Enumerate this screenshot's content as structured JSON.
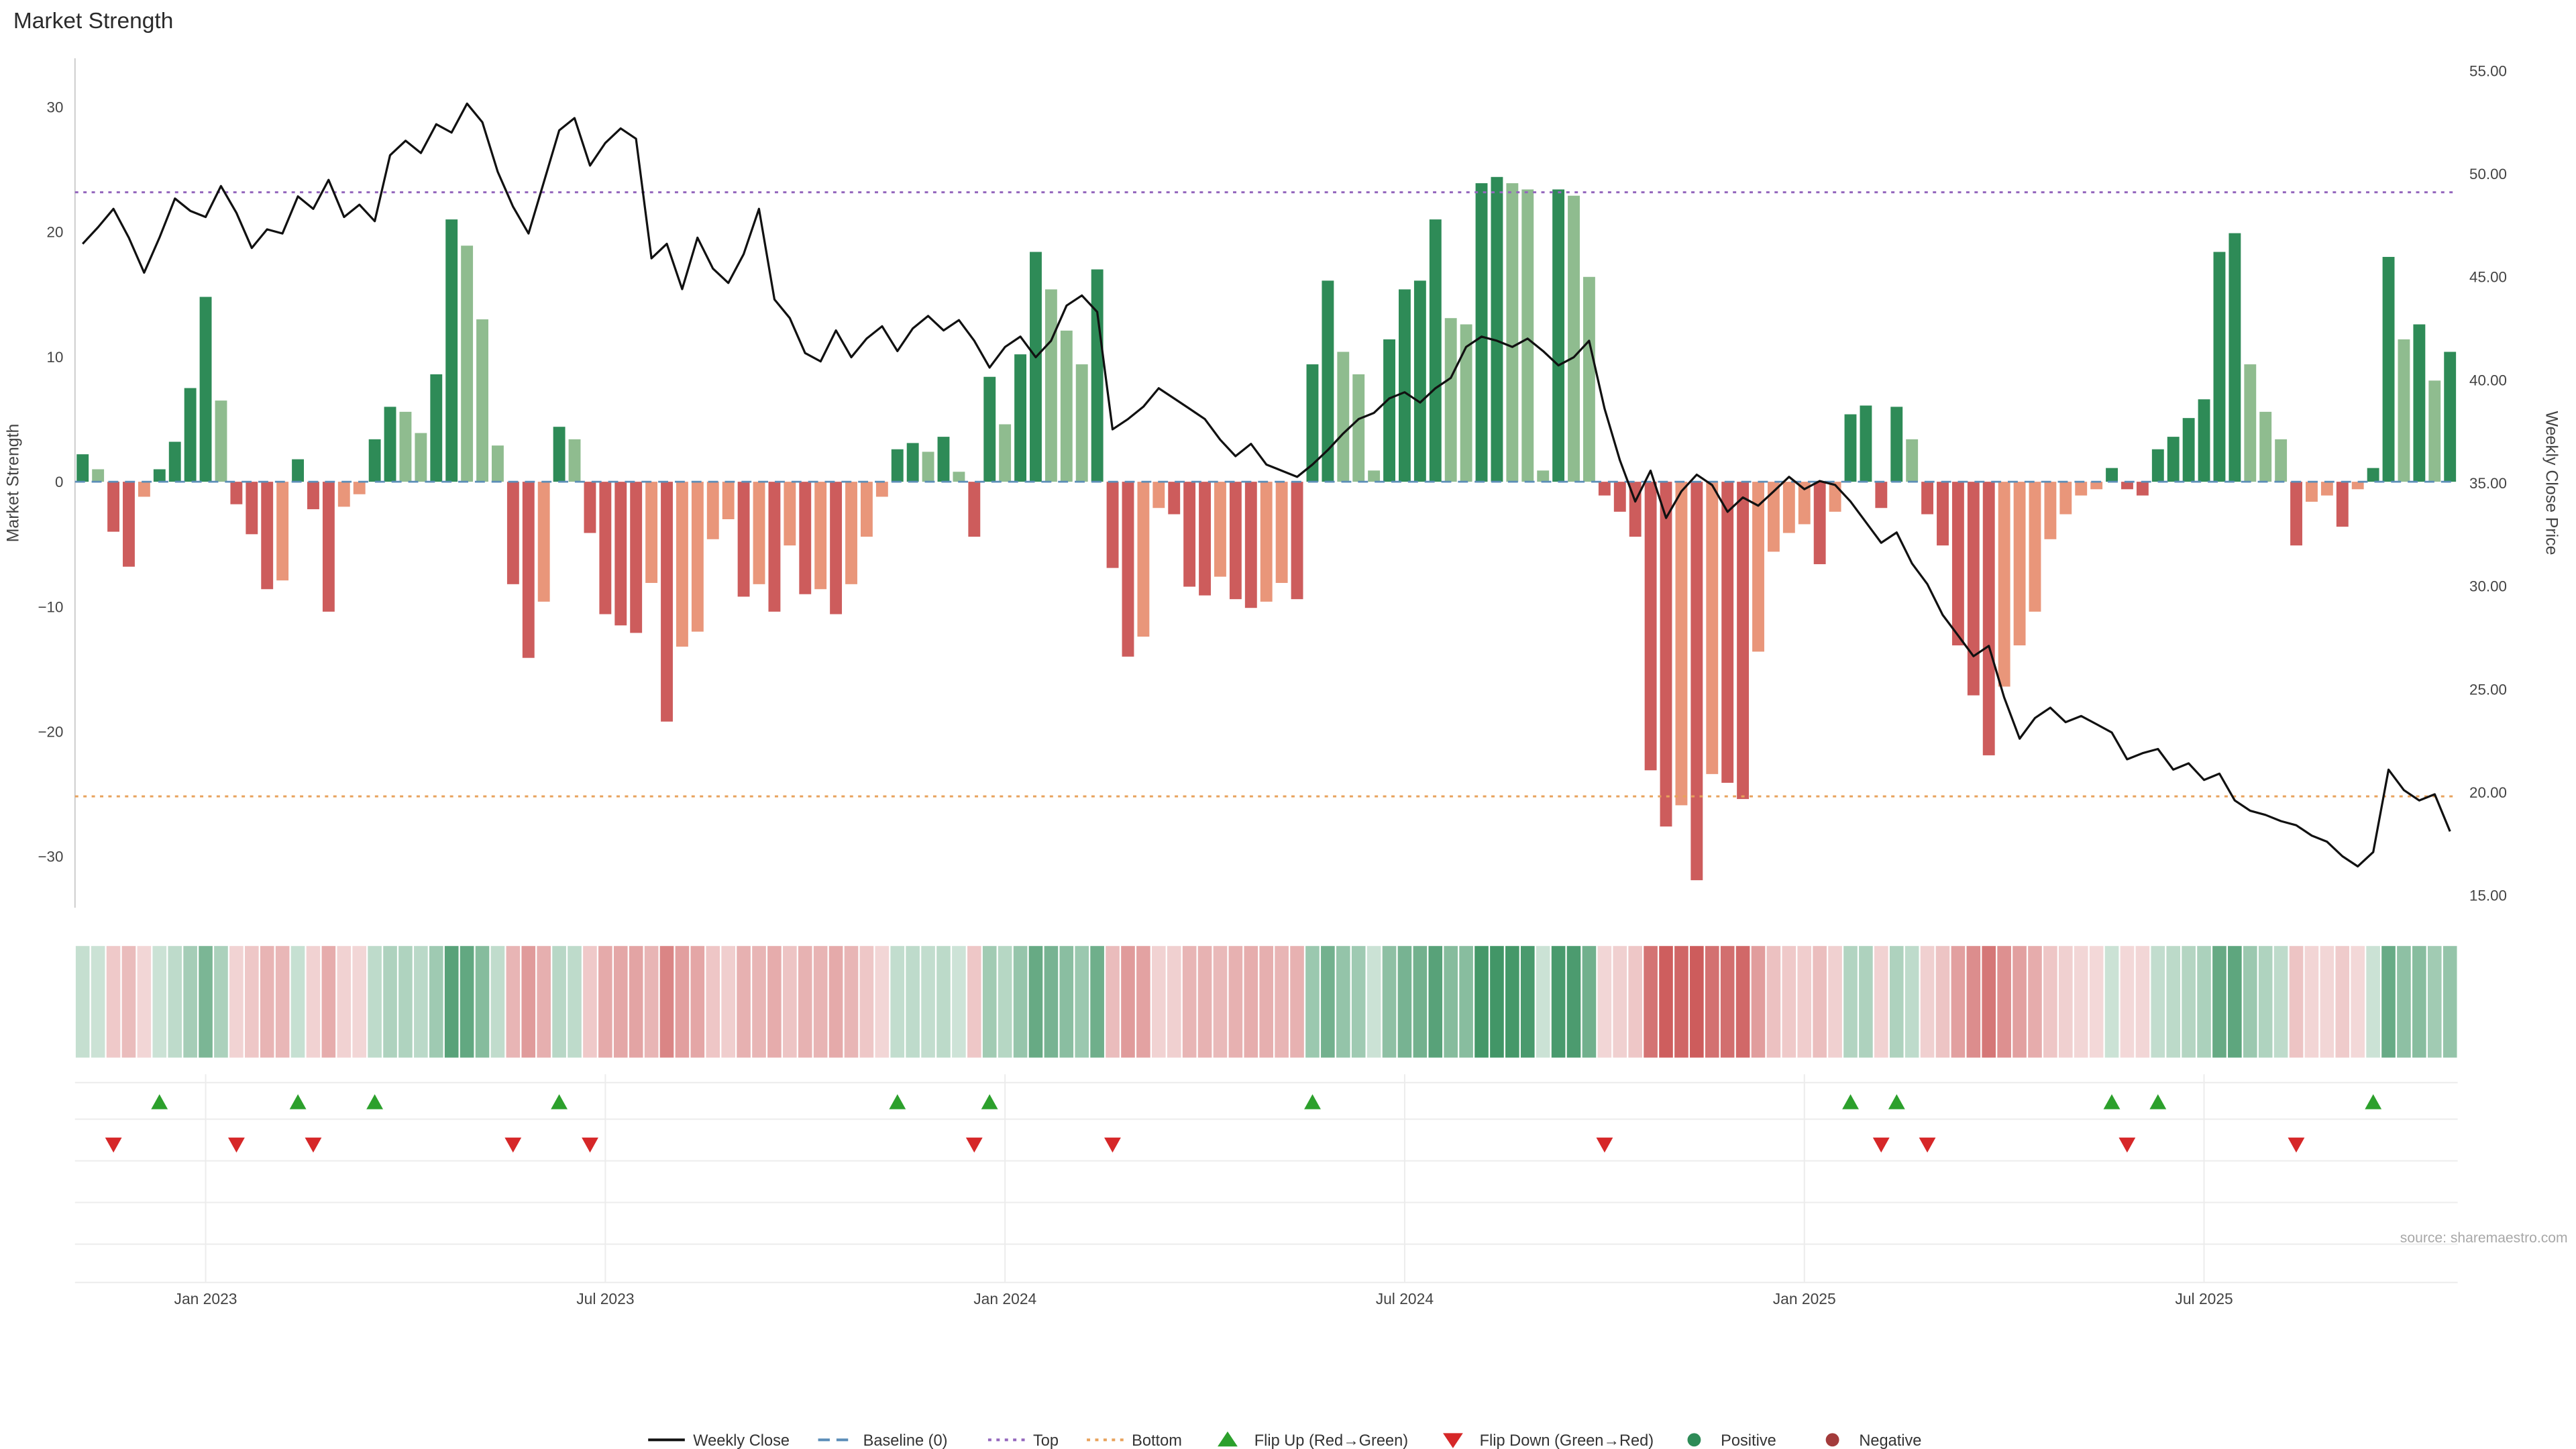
{
  "title": "Market Strength",
  "source": "source: sharemaestro.com",
  "colors": {
    "bar_positive_dark": "#2e8b57",
    "bar_positive_light": "#8fbc8f",
    "bar_negative_dark": "#cd5c5c",
    "bar_negative_light": "#e9967a",
    "price_line": "#111111",
    "baseline": "#5b8db8",
    "top_line": "#9467bd",
    "bottom_line": "#e8a25c",
    "flip_up": "#2ca02c",
    "flip_down": "#d62728",
    "positive_dot": "#2e8b57",
    "negative_dot": "#a33b3b",
    "grid": "#ececec",
    "spine": "#cccccc"
  },
  "legend": {
    "items": [
      {
        "label": "Weekly Close",
        "icon": "line",
        "color": "#111111"
      },
      {
        "label": "Baseline (0)",
        "icon": "dashed",
        "color": "#5b8db8"
      },
      {
        "label": "Top",
        "icon": "dotted",
        "color": "#9467bd"
      },
      {
        "label": "Bottom",
        "icon": "dotted",
        "color": "#e8a25c"
      },
      {
        "label": "Flip Up (Red→Green)",
        "icon": "triangle-up",
        "color": "#2ca02c"
      },
      {
        "label": "Flip Down (Green→Red)",
        "icon": "triangle-down",
        "color": "#d62728"
      },
      {
        "label": "Positive",
        "icon": "dot",
        "color": "#2e8b57"
      },
      {
        "label": "Negative",
        "icon": "dot",
        "color": "#a33b3b"
      }
    ]
  },
  "chart_data": {
    "type": "bar",
    "title": "Market Strength",
    "ylabel_left": "Market Strength",
    "ylabel_right": "Weekly Close Price",
    "ylim_left": [
      -34.1,
      33.9
    ],
    "ylim_right": [
      14.4,
      55.6
    ],
    "yticks_left": [
      {
        "v": 30,
        "label": "30"
      },
      {
        "v": 20,
        "label": "20"
      },
      {
        "v": 10,
        "label": "10"
      },
      {
        "v": 0,
        "label": "0"
      },
      {
        "v": -10,
        "label": "−10"
      },
      {
        "v": -20,
        "label": "−20"
      },
      {
        "v": -30,
        "label": "−30"
      }
    ],
    "yticks_right": [
      {
        "v": 55,
        "label": "55.00"
      },
      {
        "v": 50,
        "label": "50.00"
      },
      {
        "v": 45,
        "label": "45.00"
      },
      {
        "v": 40,
        "label": "40.00"
      },
      {
        "v": 35,
        "label": "35.00"
      },
      {
        "v": 30,
        "label": "30.00"
      },
      {
        "v": 25,
        "label": "25.00"
      },
      {
        "v": 20,
        "label": "20.00"
      },
      {
        "v": 15,
        "label": "15.00"
      }
    ],
    "xticks": [
      {
        "week": 8,
        "label": "Jan 2023"
      },
      {
        "week": 34,
        "label": "Jul 2023"
      },
      {
        "week": 60,
        "label": "Jan 2024"
      },
      {
        "week": 86,
        "label": "Jul 2024"
      },
      {
        "week": 112,
        "label": "Jan 2025"
      },
      {
        "week": 138,
        "label": "Jul 2025"
      }
    ],
    "baseline": 0,
    "top_line_price": 49.1,
    "bottom_line_price": 19.8,
    "series": [
      {
        "name": "Market Strength",
        "kind": "bar",
        "axis": "left",
        "values": [
          2.2,
          1.0,
          -4.0,
          -6.8,
          -1.2,
          1.0,
          3.2,
          7.5,
          14.8,
          6.5,
          -1.8,
          -4.2,
          -8.6,
          -7.9,
          1.8,
          -2.2,
          -10.4,
          -2.0,
          -1.0,
          3.4,
          6.0,
          5.6,
          3.9,
          8.6,
          21.0,
          18.9,
          13.0,
          2.9,
          -8.2,
          -14.1,
          -9.6,
          4.4,
          3.4,
          -4.1,
          -10.6,
          -11.5,
          -12.1,
          -8.1,
          -19.2,
          -13.2,
          -12.0,
          -4.6,
          -3.0,
          -9.2,
          -8.2,
          -10.4,
          -5.1,
          -9.0,
          -8.6,
          -10.6,
          -8.2,
          -4.4,
          -1.2,
          2.6,
          3.1,
          2.4,
          3.6,
          0.8,
          -4.4,
          8.4,
          4.6,
          10.2,
          18.4,
          15.4,
          12.1,
          9.4,
          17.0,
          -6.9,
          -14.0,
          -12.4,
          -2.1,
          -2.6,
          -8.4,
          -9.1,
          -7.6,
          -9.4,
          -10.1,
          -9.6,
          -8.1,
          -9.4,
          9.4,
          16.1,
          10.4,
          8.6,
          0.9,
          11.4,
          15.4,
          16.1,
          21.0,
          13.1,
          12.6,
          23.9,
          24.4,
          23.9,
          23.4,
          0.9,
          23.4,
          22.9,
          16.4,
          -1.1,
          -2.4,
          -4.4,
          -23.1,
          -27.6,
          -25.9,
          -31.9,
          -23.4,
          -24.1,
          -25.4,
          -13.6,
          -5.6,
          -4.1,
          -3.4,
          -6.6,
          -2.4,
          5.4,
          6.1,
          -2.1,
          6.0,
          3.4,
          -2.6,
          -5.1,
          -13.1,
          -17.1,
          -21.9,
          -16.4,
          -13.1,
          -10.4,
          -4.6,
          -2.6,
          -1.1,
          -0.6,
          1.1,
          -0.6,
          -1.1,
          2.6,
          3.6,
          5.1,
          6.6,
          18.4,
          19.9,
          9.4,
          5.6,
          3.4,
          -5.1,
          -1.6,
          -1.1,
          -3.6,
          -0.6,
          1.1,
          18.0,
          11.4,
          12.6,
          8.1,
          10.4
        ]
      },
      {
        "name": "Weekly Close",
        "kind": "line",
        "axis": "right",
        "values": [
          46.6,
          47.4,
          48.3,
          46.9,
          45.2,
          46.9,
          48.8,
          48.2,
          47.9,
          49.4,
          48.1,
          46.4,
          47.3,
          47.1,
          48.9,
          48.3,
          49.7,
          47.9,
          48.5,
          47.7,
          50.9,
          51.6,
          51.0,
          52.4,
          52.0,
          53.4,
          52.5,
          50.1,
          48.4,
          47.1,
          49.6,
          52.1,
          52.7,
          50.4,
          51.5,
          52.2,
          51.7,
          45.9,
          46.6,
          44.4,
          46.9,
          45.4,
          44.7,
          46.1,
          48.3,
          43.9,
          43.0,
          41.3,
          40.9,
          42.4,
          41.1,
          42.0,
          42.6,
          41.4,
          42.5,
          43.1,
          42.4,
          42.9,
          41.9,
          40.6,
          41.6,
          42.1,
          41.1,
          41.9,
          43.6,
          44.1,
          43.3,
          37.6,
          38.1,
          38.7,
          39.6,
          39.1,
          38.6,
          38.1,
          37.1,
          36.3,
          36.9,
          35.9,
          35.6,
          35.3,
          35.9,
          36.6,
          37.4,
          38.1,
          38.4,
          39.1,
          39.4,
          38.9,
          39.6,
          40.1,
          41.6,
          42.1,
          41.9,
          41.6,
          42.0,
          41.4,
          40.7,
          41.1,
          41.9,
          38.6,
          36.1,
          34.1,
          35.6,
          33.3,
          34.6,
          35.4,
          34.9,
          33.6,
          34.3,
          33.9,
          34.6,
          35.3,
          34.7,
          35.1,
          34.9,
          34.1,
          33.1,
          32.1,
          32.6,
          31.1,
          30.1,
          28.6,
          27.6,
          26.6,
          27.1,
          24.6,
          22.6,
          23.6,
          24.1,
          23.4,
          23.7,
          23.3,
          22.9,
          21.6,
          21.9,
          22.1,
          21.1,
          21.4,
          20.6,
          20.9,
          19.6,
          19.1,
          18.9,
          18.6,
          18.4,
          17.9,
          17.6,
          16.9,
          16.4,
          17.1,
          21.1,
          20.1,
          19.6,
          19.9,
          18.1
        ]
      }
    ],
    "flip_up_weeks": [
      5,
      14,
      19,
      31,
      53,
      59,
      80,
      115,
      118,
      132,
      135,
      149
    ],
    "flip_down_weeks": [
      2,
      10,
      15,
      28,
      33,
      58,
      67,
      99,
      117,
      120,
      133,
      144
    ]
  }
}
